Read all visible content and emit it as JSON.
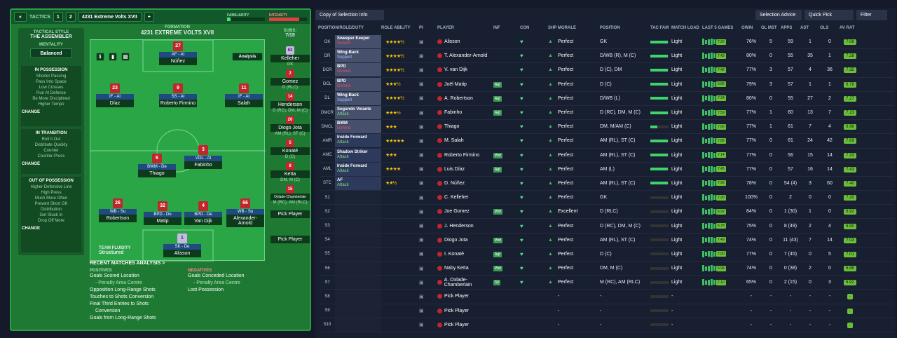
{
  "header": {
    "back": "«",
    "title": "TACTICS",
    "tab1": "1",
    "tab2": "2",
    "tactic": "4231 Extreme Volts XVII",
    "add": "+",
    "familiarity": "FAMILIARITY",
    "intensity": "INTENSITY"
  },
  "tactical_style": {
    "label": "TACTICAL STYLE",
    "value": "THE ASSEMBLER",
    "mentality_label": "MENTALITY",
    "mentality": "Balanced"
  },
  "in_possession": {
    "title": "IN POSSESSION",
    "lines": [
      "Shorter Passing",
      "Pass Into Space",
      "Low Crosses",
      "Run At Defence",
      "Be More Disciplined",
      "Higher Tempo"
    ],
    "change": "CHANGE"
  },
  "in_transition": {
    "title": "IN TRANSITION",
    "lines": [
      "Roll It Out",
      "Distribute Quickly",
      "Counter",
      "Counter-Press"
    ],
    "change": "CHANGE"
  },
  "out_of_possession": {
    "title": "OUT OF POSSESSION",
    "lines": [
      "Higher Defensive Line",
      "High Press",
      "Much More Often",
      "Prevent Short GK",
      "Distribution",
      "Get Stuck In",
      "Drop Off More"
    ],
    "change": "CHANGE"
  },
  "formation": {
    "label": "FORMATION",
    "name": "4231 EXTREME VOLTS XVII",
    "subs_label": "SUBS:",
    "subs": "7/15",
    "analysis": "Analysis",
    "fluidity_label": "TEAM FLUIDITY",
    "fluidity": "Structured"
  },
  "players_pitch": [
    {
      "num": "27",
      "role": "AF - At",
      "name": "Núñez"
    },
    {
      "num": "23",
      "role": "IF - At",
      "name": "Díaz"
    },
    {
      "num": "9",
      "role": "SS - At",
      "name": "Roberto Firmino"
    },
    {
      "num": "11",
      "role": "IF - At",
      "name": "Salah"
    },
    {
      "num": "6",
      "role": "BWM - De",
      "name": "Thiago"
    },
    {
      "num": "3",
      "role": "VOL - At",
      "name": "Fabinho"
    },
    {
      "num": "26",
      "role": "WB - Su",
      "name": "Robertson"
    },
    {
      "num": "32",
      "role": "BPD - De",
      "name": "Matip"
    },
    {
      "num": "4",
      "role": "BPD - De",
      "name": "Van Dijk"
    },
    {
      "num": "66",
      "role": "WB - Su",
      "name": "Alexander-Arnold"
    },
    {
      "num": "1",
      "role": "SK - De",
      "name": "Alisson"
    }
  ],
  "subs_list": [
    {
      "num": "62",
      "name": "Kelleher",
      "pos": "GK"
    },
    {
      "num": "2",
      "name": "Gomez",
      "pos": "D (RLC)"
    },
    {
      "num": "14",
      "name": "Henderson",
      "pos": "D (RC), DM, M (C)"
    },
    {
      "num": "20",
      "name": "Diogo Jota",
      "pos": "AM (RL), ST (C)"
    },
    {
      "num": "5",
      "name": "Konaté",
      "pos": "D (C)"
    },
    {
      "num": "8",
      "name": "Keïta",
      "pos": "DM, M (C)"
    },
    {
      "num": "15",
      "name": "Oxlade-Chamberlain",
      "pos": "M (RC), AM (RLC)"
    },
    {
      "num": "",
      "name": "Pick Player",
      "pos": ""
    },
    {
      "num": "",
      "name": "Pick Player",
      "pos": ""
    }
  ],
  "analysis": {
    "title": "RECENT MATCHES ANALYSIS >",
    "pos_label": "POSITIVES",
    "positives": [
      "Goals Scored Location",
      "- Penalty Area Centre",
      "Opposition Long-Range Shots",
      "Touches to Shots Conversion",
      "Final Third Entries to Shots",
      "Conversion",
      "Goals from Long-Range Shots"
    ],
    "neg_label": "NEGATIVES",
    "negatives": [
      "Goals Conceded Location",
      "- Penalty Area Centre",
      "Lost Possession"
    ]
  },
  "toolbar": {
    "view": "Copy of Selection Info",
    "advice": "Selection Advice",
    "quick": "Quick Pick",
    "filter": "Filter"
  },
  "columns": [
    "POSITION/ROLE/DUTY",
    "ROLE ABILITY",
    "PI",
    "PLAYER",
    "INF",
    "CON",
    "SHP",
    "MORALE",
    "POSITION",
    "TAC FAM",
    "MATCH LOAD",
    "LAST 5 GAMES",
    "GWIN",
    "GL MST",
    "APPS",
    "AST",
    "GLS",
    "AV RAT"
  ],
  "rows": [
    {
      "pos": "GK",
      "role": "Sweeper Keeper",
      "duty": "Defend",
      "stars": "★★★★½",
      "player": "Alisson",
      "inf": "",
      "morale": "Perfect",
      "position": "GK",
      "fam": 0.95,
      "load": "Light",
      "rat": "7.20",
      "gwin": "76%",
      "glmst": "5",
      "apps": "59",
      "ast": "1",
      "gls": "0",
      "avr": "7.08"
    },
    {
      "pos": "DR",
      "role": "Wing-Back",
      "duty": "Support",
      "stars": "★★★★½",
      "player": "T. Alexander-Arnold",
      "inf": "",
      "morale": "Perfect",
      "position": "D/WB (R), M (C)",
      "fam": 0.95,
      "load": "Light",
      "rat": "7.43",
      "gwin": "80%",
      "glmst": "0",
      "apps": "55",
      "ast": "35",
      "gls": "1",
      "avr": "7.28"
    },
    {
      "pos": "DCR",
      "role": "BPD",
      "duty": "Defend",
      "stars": "★★★★½",
      "player": "V. van Dijk",
      "inf": "",
      "morale": "Perfect",
      "position": "D (C), DM",
      "fam": 0.95,
      "load": "Light",
      "rat": "7.48",
      "gwin": "77%",
      "glmst": "3",
      "apps": "57",
      "ast": "4",
      "gls": "36",
      "avr": "7.35"
    },
    {
      "pos": "DCL",
      "role": "BPD",
      "duty": "Defend",
      "stars": "★★★½",
      "player": "Joël Matip",
      "inf": "Agt",
      "morale": "Perfect",
      "position": "D (C)",
      "fam": 0.95,
      "load": "Light",
      "rat": "6.66",
      "gwin": "79%",
      "glmst": "3",
      "apps": "57",
      "ast": "1",
      "gls": "1",
      "avr": "6.78"
    },
    {
      "pos": "DL",
      "role": "Wing-Back",
      "duty": "Support",
      "stars": "★★★★½",
      "player": "A. Robertson",
      "inf": "Agt",
      "morale": "Perfect",
      "position": "D/WB (L)",
      "fam": 0.95,
      "load": "Light",
      "rat": "7.34",
      "gwin": "80%",
      "glmst": "0",
      "apps": "55",
      "ast": "27",
      "gls": "2",
      "avr": "7.27"
    },
    {
      "pos": "DMCR",
      "role": "Segundo Volante",
      "duty": "Attack",
      "stars": "★★★½",
      "player": "Fabinho",
      "inf": "Agt",
      "morale": "Perfect",
      "position": "D (RC), DM, M (C)",
      "fam": 0.95,
      "load": "Light",
      "rat": "7.59",
      "gwin": "77%",
      "glmst": "1",
      "apps": "60",
      "ast": "13",
      "gls": "7",
      "avr": "7.23"
    },
    {
      "pos": "DMCL",
      "role": "BWM",
      "duty": "Defend",
      "stars": "★★★",
      "player": "Thiago",
      "inf": "",
      "morale": "Perfect",
      "position": "DM, M/AM (C)",
      "fam": 0.4,
      "load": "Light",
      "rat": "7.06",
      "gwin": "77%",
      "glmst": "1",
      "apps": "61",
      "ast": "7",
      "gls": "4",
      "avr": "6.96"
    },
    {
      "pos": "AMR",
      "role": "Inside Forward",
      "duty": "Attack",
      "stars": "★★★★★",
      "player": "M. Salah",
      "inf": "",
      "morale": "Perfect",
      "position": "AM (RL), ST (C)",
      "fam": 0.95,
      "load": "Light",
      "rat": "7.88",
      "gwin": "77%",
      "glmst": "0",
      "apps": "61",
      "ast": "24",
      "gls": "42",
      "avr": "7.69"
    },
    {
      "pos": "AMC",
      "role": "Shadow Striker",
      "duty": "Attack",
      "stars": "★★★",
      "player": "Roberto Firmino",
      "inf": "Wnt",
      "morale": "Perfect",
      "position": "AM (RL), ST (C)",
      "fam": 0.95,
      "load": "Light",
      "rat": "7.14",
      "gwin": "77%",
      "glmst": "0",
      "apps": "56",
      "ast": "15",
      "gls": "14",
      "avr": "7.33"
    },
    {
      "pos": "AML",
      "role": "Inside Forward",
      "duty": "Attack",
      "stars": "★★★★",
      "player": "Luis Díaz",
      "inf": "Agt",
      "morale": "Perfect",
      "position": "AM (L)",
      "fam": 0.95,
      "load": "Light",
      "rat": "7.45",
      "gwin": "77%",
      "glmst": "0",
      "apps": "57",
      "ast": "16",
      "gls": "14",
      "avr": "7.43"
    },
    {
      "pos": "STC",
      "role": "AF",
      "duty": "Attack",
      "stars": "★★½",
      "player": "D. Núñez",
      "inf": "",
      "morale": "Perfect",
      "position": "AM (RL), ST (C)",
      "fam": 0.95,
      "load": "Light",
      "rat": "7.96",
      "gwin": "78%",
      "glmst": "0",
      "apps": "54 (4)",
      "ast": "3",
      "gls": "60",
      "avr": "7.40"
    },
    {
      "pos": "S1",
      "role": "",
      "duty": "",
      "stars": "",
      "player": "C. Kelleher",
      "inf": "",
      "morale": "Perfect",
      "position": "GK",
      "fam": 0.0,
      "load": "Light",
      "rat": "7.20",
      "gwin": "100%",
      "glmst": "0",
      "apps": "2",
      "ast": "0",
      "gls": "0",
      "avr": "7.20"
    },
    {
      "pos": "S2",
      "role": "",
      "duty": "",
      "stars": "",
      "player": "Joe Gomez",
      "inf": "Wnt",
      "morale": "Excellent",
      "position": "D (RLC)",
      "fam": 0.0,
      "load": "Light",
      "rat": "6.92",
      "gwin": "84%",
      "glmst": "0",
      "apps": "1 (30)",
      "ast": "1",
      "gls": "0",
      "avr": "6.92"
    },
    {
      "pos": "S3",
      "role": "",
      "duty": "",
      "stars": "",
      "player": "J. Henderson",
      "inf": "",
      "morale": "Perfect",
      "position": "D (RC), DM, M (C)",
      "fam": 0.0,
      "load": "Light",
      "rat": "6.78",
      "gwin": "75%",
      "glmst": "0",
      "apps": "8 (49)",
      "ast": "2",
      "gls": "4",
      "avr": "6.90"
    },
    {
      "pos": "S4",
      "role": "",
      "duty": "",
      "stars": "",
      "player": "Diogo Jota",
      "inf": "Wnt",
      "morale": "Perfect",
      "position": "AM (RL), ST (C)",
      "fam": 0.0,
      "load": "Light",
      "rat": "7.49",
      "gwin": "74%",
      "glmst": "0",
      "apps": "11 (43)",
      "ast": "7",
      "gls": "14",
      "avr": "7.03"
    },
    {
      "pos": "S5",
      "role": "",
      "duty": "",
      "stars": "",
      "player": "I. Konaté",
      "inf": "Agt",
      "morale": "Perfect",
      "position": "D (C)",
      "fam": 0.0,
      "load": "Light",
      "rat": "7.00",
      "gwin": "77%",
      "glmst": "0",
      "apps": "7 (45)",
      "ast": "0",
      "gls": "5",
      "avr": "7.01"
    },
    {
      "pos": "S6",
      "role": "",
      "duty": "",
      "stars": "",
      "player": "Naby Keïta",
      "inf": "Wnt",
      "morale": "Perfect",
      "position": "DM, M (C)",
      "fam": 0.0,
      "load": "Light",
      "rat": "6.98",
      "gwin": "74%",
      "glmst": "0",
      "apps": "0 (38)",
      "ast": "2",
      "gls": "0",
      "avr": "6.88"
    },
    {
      "pos": "S7",
      "role": "",
      "duty": "",
      "stars": "",
      "player": "A. Oxlade-Chamberlain",
      "inf": "Sit",
      "morale": "Perfect",
      "position": "M (RC), AM (RLC)",
      "fam": 0.0,
      "load": "Light",
      "rat": "7.10",
      "gwin": "65%",
      "glmst": "0",
      "apps": "2 (15)",
      "ast": "0",
      "gls": "3",
      "avr": "6.92"
    },
    {
      "pos": "S8",
      "role": "",
      "duty": "",
      "stars": "",
      "player": "Pick Player",
      "inf": "",
      "morale": "-",
      "position": "-",
      "fam": 0.0,
      "load": "-",
      "rat": "",
      "gwin": "-",
      "glmst": "-",
      "apps": "-",
      "ast": "-",
      "gls": "-",
      "avr": "-"
    },
    {
      "pos": "S9",
      "role": "",
      "duty": "",
      "stars": "",
      "player": "Pick Player",
      "inf": "",
      "morale": "-",
      "position": "-",
      "fam": 0.0,
      "load": "-",
      "rat": "",
      "gwin": "-",
      "glmst": "-",
      "apps": "-",
      "ast": "-",
      "gls": "-",
      "avr": "-"
    },
    {
      "pos": "S10",
      "role": "",
      "duty": "",
      "stars": "",
      "player": "Pick Player",
      "inf": "",
      "morale": "-",
      "position": "-",
      "fam": 0.0,
      "load": "-",
      "rat": "",
      "gwin": "-",
      "glmst": "-",
      "apps": "-",
      "ast": "-",
      "gls": "-",
      "avr": "-"
    }
  ]
}
